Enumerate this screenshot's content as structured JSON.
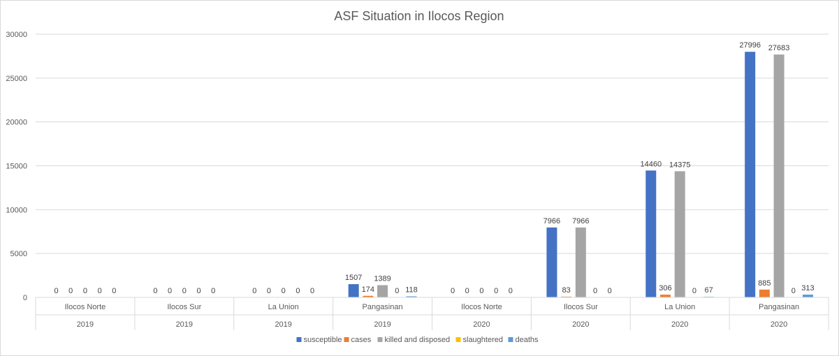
{
  "chart_data": {
    "type": "bar",
    "title": "ASF Situation in Ilocos Region",
    "xlabel": "",
    "ylabel": "",
    "ylim": [
      0,
      30000
    ],
    "yticks": [
      0,
      5000,
      10000,
      15000,
      20000,
      25000,
      30000
    ],
    "grid": true,
    "legend_position": "bottom",
    "categories": [
      {
        "province": "Ilocos Norte",
        "year": "2019"
      },
      {
        "province": "Ilocos Sur",
        "year": "2019"
      },
      {
        "province": "La Union",
        "year": "2019"
      },
      {
        "province": "Pangasinan",
        "year": "2019"
      },
      {
        "province": "Ilocos Norte",
        "year": "2020"
      },
      {
        "province": "Ilocos Sur",
        "year": "2020"
      },
      {
        "province": "La Union",
        "year": "2020"
      },
      {
        "province": "Pangasinan",
        "year": "2020"
      }
    ],
    "series": [
      {
        "name": "susceptible",
        "color": "#4472c4",
        "values": [
          0,
          0,
          0,
          1507,
          0,
          7966,
          14460,
          27996
        ]
      },
      {
        "name": "cases",
        "color": "#ed7d31",
        "values": [
          0,
          0,
          0,
          174,
          0,
          83,
          306,
          885
        ]
      },
      {
        "name": "killed and disposed",
        "color": "#a5a5a5",
        "values": [
          0,
          0,
          0,
          1389,
          0,
          7966,
          14375,
          27683
        ]
      },
      {
        "name": "slaughtered",
        "color": "#ffc000",
        "values": [
          0,
          0,
          0,
          0,
          0,
          0,
          0,
          0
        ]
      },
      {
        "name": "deaths",
        "color": "#5b9bd5",
        "values": [
          0,
          0,
          0,
          118,
          0,
          0,
          67,
          313
        ]
      }
    ]
  }
}
